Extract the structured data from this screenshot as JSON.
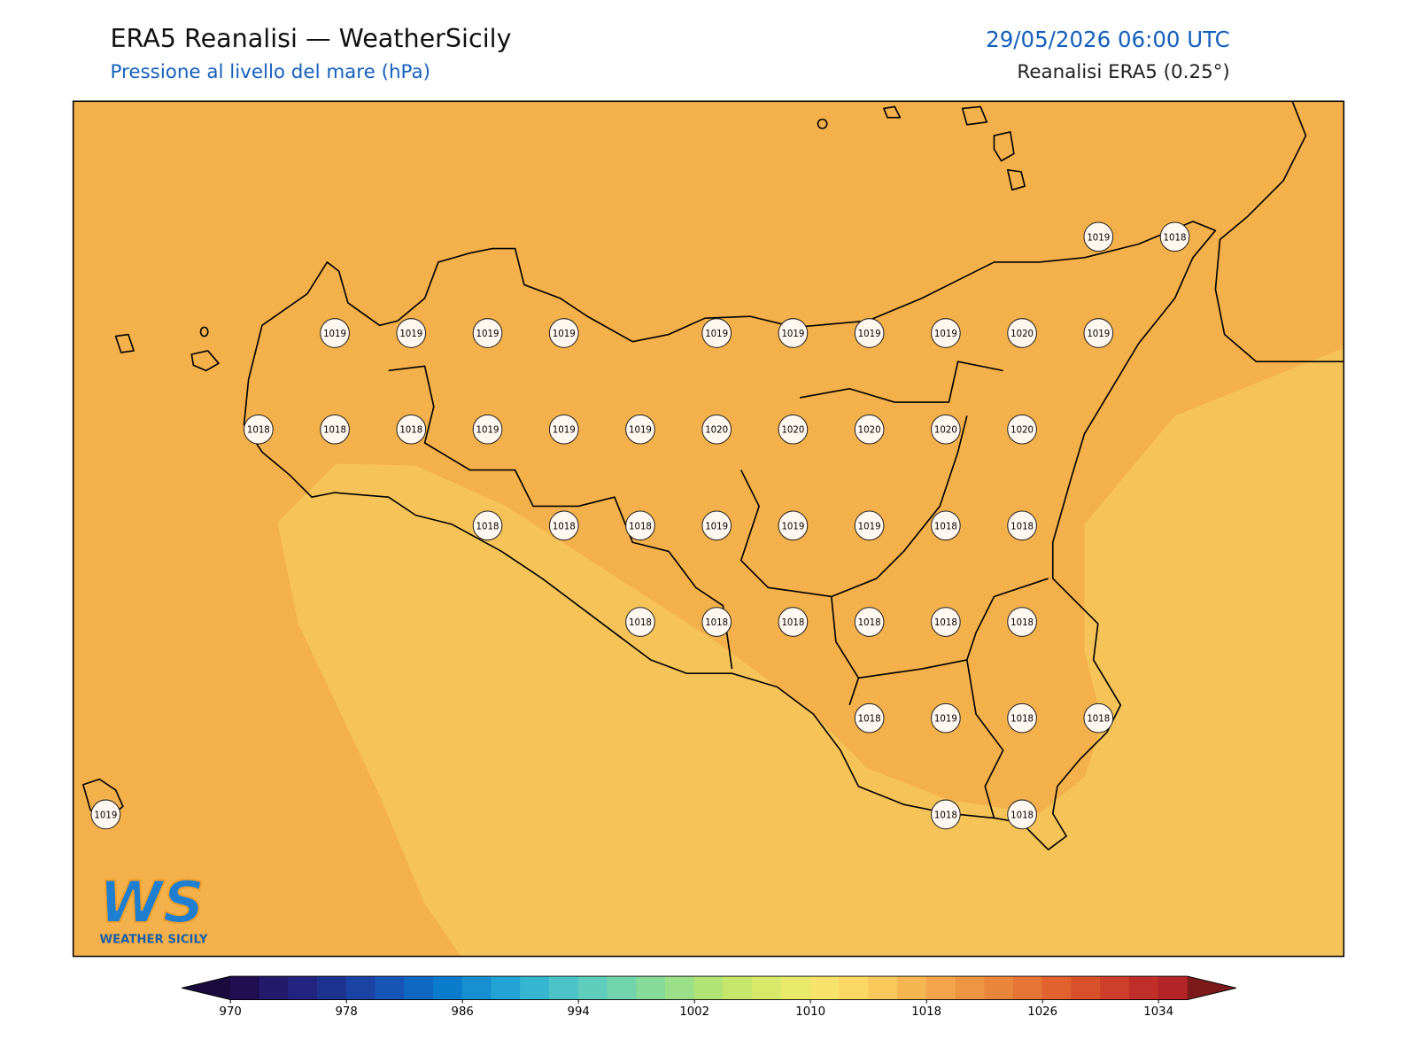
{
  "header": {
    "title": "ERA5 Reanalisi — WeatherSicily",
    "subtitle": "Pressione al livello del mare (hPa)",
    "datetime": "29/05/2026 06:00 UTC",
    "source": "Reanalisi ERA5 (0.25°)"
  },
  "station_grid": [
    [
      null,
      null,
      null,
      null,
      null,
      null,
      null,
      null,
      null,
      null,
      null,
      null,
      null,
      1019,
      1018
    ],
    [
      null,
      null,
      null,
      1019,
      1019,
      1019,
      1019,
      null,
      1019,
      1019,
      1019,
      1019,
      1020,
      1019,
      null
    ],
    [
      null,
      null,
      1018,
      1018,
      1018,
      1019,
      1019,
      1019,
      1020,
      1020,
      1020,
      1020,
      1020,
      null,
      null
    ],
    [
      null,
      null,
      null,
      null,
      null,
      1018,
      1018,
      1018,
      1019,
      1019,
      1019,
      1018,
      1018,
      null,
      null
    ],
    [
      null,
      null,
      null,
      null,
      null,
      null,
      null,
      1018,
      1018,
      1018,
      1018,
      1018,
      1018,
      null,
      null
    ],
    [
      null,
      null,
      null,
      null,
      null,
      null,
      null,
      null,
      null,
      null,
      1018,
      1019,
      1018,
      1018,
      null
    ],
    [
      1019,
      null,
      null,
      null,
      null,
      null,
      null,
      null,
      null,
      null,
      null,
      1018,
      1018,
      null,
      null
    ]
  ],
  "colorbar": {
    "ticks": [
      970,
      978,
      986,
      994,
      1002,
      1010,
      1018,
      1026,
      1034
    ],
    "under_color": "#1a0a3d",
    "over_color": "#7a1a1a",
    "colors": [
      "#1f0f50",
      "#241a6b",
      "#23247f",
      "#1e3390",
      "#1a43a3",
      "#1655b5",
      "#0f68c2",
      "#0b7bcc",
      "#178fd0",
      "#22a3d4",
      "#35b5d0",
      "#4cc3c6",
      "#5ecdbc",
      "#72d4ad",
      "#86da9a",
      "#9be088",
      "#b1e475",
      "#c6e76a",
      "#d8e96a",
      "#e8e86b",
      "#f7e36b",
      "#fbd863",
      "#f9c95c",
      "#f6b753",
      "#f2a54a",
      "#ee9542",
      "#eb853c",
      "#e67435",
      "#e1622f",
      "#d9512b",
      "#cd3f2a",
      "#c02e2a",
      "#b22428"
    ]
  },
  "logo": {
    "mark": "WS",
    "caption": "WEATHER SICILY"
  }
}
